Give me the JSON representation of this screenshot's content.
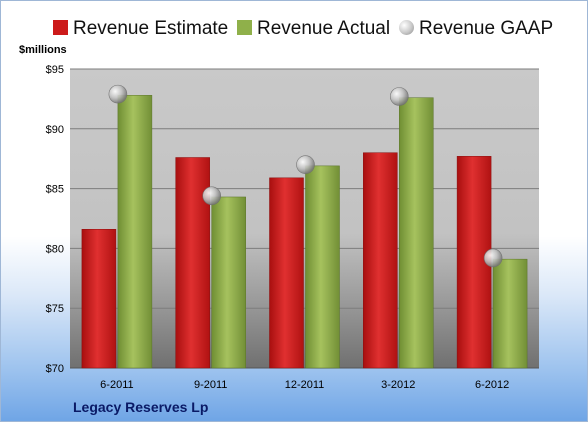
{
  "chart_data": {
    "type": "bar",
    "categories": [
      "6-2011",
      "9-2011",
      "12-2011",
      "3-2012",
      "6-2012"
    ],
    "series": [
      {
        "name": "Revenue Estimate",
        "kind": "bar",
        "color": "#cc1a1a",
        "values": [
          81.6,
          87.6,
          85.9,
          88.0,
          87.7
        ]
      },
      {
        "name": "Revenue Actual",
        "kind": "bar",
        "color": "#8fb04a",
        "values": [
          92.8,
          84.3,
          86.9,
          92.6,
          79.1
        ]
      },
      {
        "name": "Revenue GAAP",
        "kind": "marker",
        "color": "#c0c0c0",
        "values": [
          92.9,
          84.4,
          87.0,
          92.7,
          79.2
        ]
      }
    ],
    "ylabel": "$millions",
    "ylim": [
      70,
      95
    ],
    "yticks": [
      70,
      75,
      80,
      85,
      90,
      95
    ],
    "ytick_labels": [
      "$70",
      "$75",
      "$80",
      "$85",
      "$90",
      "$95"
    ],
    "grid": true,
    "legend_position": "top"
  },
  "company": "Legacy Reserves Lp"
}
